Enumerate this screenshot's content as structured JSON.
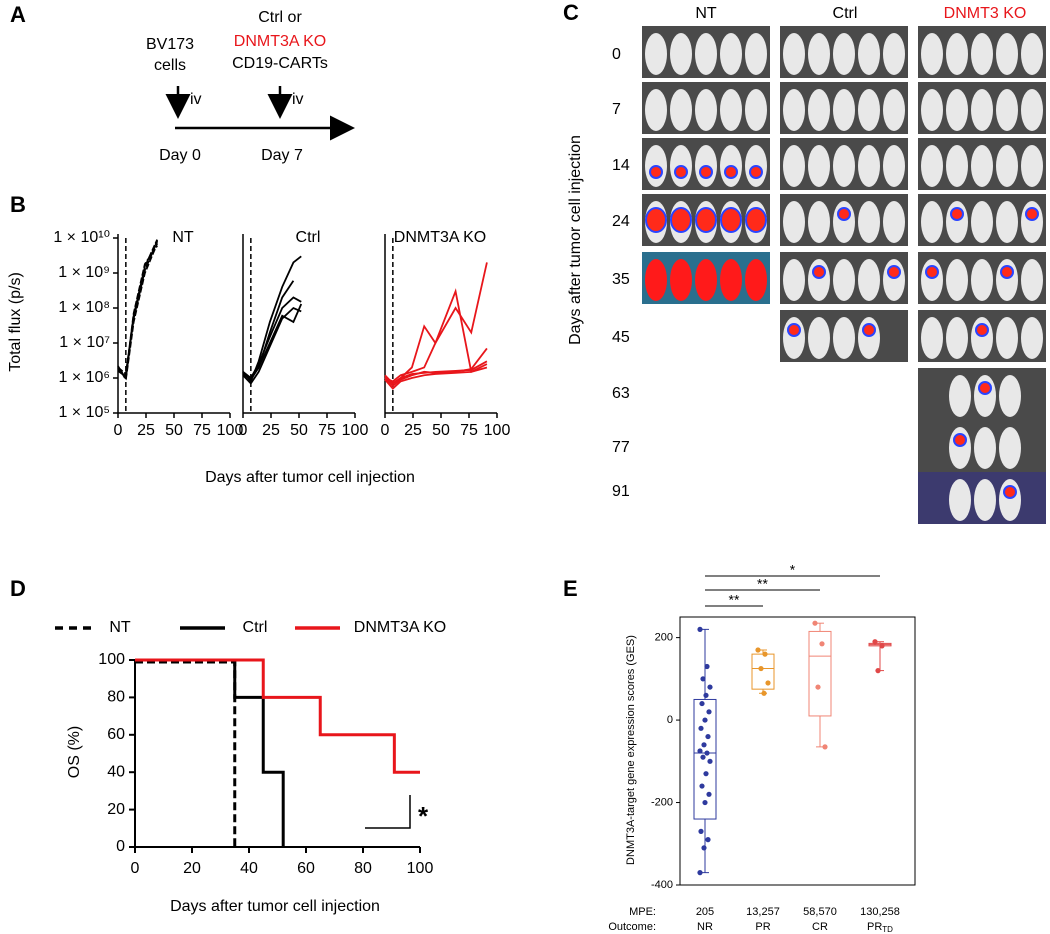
{
  "panel_labels": [
    "A",
    "B",
    "C",
    "D",
    "E"
  ],
  "timeline": {
    "tumor": [
      "BV173",
      "cells"
    ],
    "route_1": "iv",
    "treatment": [
      "Ctrl or",
      "DNMT3A KO",
      "CD19-CARTs"
    ],
    "route_2": "iv",
    "day_1": "Day 0",
    "day_2": "Day 7"
  },
  "panel_b": {
    "y_label": "Total flux (p/s)",
    "x_label": "Days after tumor cell injection"
  },
  "imaging": {
    "columns": [
      "NT",
      "Ctrl",
      "DNMT3 KO"
    ],
    "days": [
      "0",
      "7",
      "14",
      "24",
      "35",
      "45",
      "63",
      "77",
      "91"
    ],
    "y_label": "Days after tumor cell injection"
  },
  "chart_data": [
    {
      "type": "line",
      "title": "NT",
      "log_y": true,
      "vline": 7,
      "x": [
        0,
        7,
        14,
        24,
        35
      ],
      "xlim": [
        0,
        100
      ],
      "xticks": [
        0,
        25,
        50,
        75,
        100
      ],
      "ylim": [
        100000,
        10000000000
      ],
      "yticks": [
        {
          "value": 100000,
          "label": "1 × 10⁵"
        },
        {
          "value": 1000000,
          "label": "1 × 10⁶"
        },
        {
          "value": 10000000,
          "label": "1 × 10⁷"
        },
        {
          "value": 100000000,
          "label": "1 × 10⁸"
        },
        {
          "value": 1000000000,
          "label": "1 × 10⁹"
        },
        {
          "value": 10000000000,
          "label": "1 × 10¹⁰"
        }
      ],
      "series": [
        {
          "color": "#000000",
          "dash": true,
          "values": [
            2000000,
            1000000,
            60000000,
            1500000000,
            9000000000
          ]
        },
        {
          "color": "#000000",
          "dash": true,
          "values": [
            1800000,
            1200000,
            50000000,
            1200000000,
            8000000000
          ]
        },
        {
          "color": "#000000",
          "dash": true,
          "values": [
            2200000,
            900000,
            40000000,
            1000000000,
            7000000000
          ]
        },
        {
          "color": "#000000",
          "dash": true,
          "values": [
            1600000,
            1100000,
            70000000,
            1800000000,
            6000000000
          ]
        },
        {
          "color": "#000000",
          "dash": true,
          "values": [
            2000000,
            1300000,
            55000000,
            1300000000,
            8500000000
          ]
        }
      ]
    },
    {
      "type": "line",
      "title": "Ctrl",
      "log_y": true,
      "vline": 7,
      "x": [
        0,
        7,
        14,
        24,
        35,
        45,
        52
      ],
      "xlim": [
        0,
        100
      ],
      "xticks": [
        0,
        25,
        50,
        75,
        100
      ],
      "ylim": [
        100000,
        10000000000
      ],
      "series": [
        {
          "color": "#000000",
          "values": [
            1500000,
            800000,
            3000000,
            40000000,
            400000000,
            2000000000,
            3000000000
          ]
        },
        {
          "color": "#000000",
          "values": [
            1300000,
            900000,
            2000000,
            20000000,
            200000000,
            600000000,
            null
          ]
        },
        {
          "color": "#000000",
          "values": [
            1500000,
            1000000,
            2500000,
            15000000,
            100000000,
            200000000,
            150000000
          ]
        },
        {
          "color": "#000000",
          "values": [
            1200000,
            700000,
            1500000,
            8000000,
            50000000,
            100000000,
            80000000
          ]
        },
        {
          "color": "#000000",
          "values": [
            1400000,
            1000000,
            2000000,
            10000000,
            60000000,
            40000000,
            130000000
          ]
        }
      ]
    },
    {
      "type": "line",
      "title": "DNMT3A  KO",
      "log_y": true,
      "vline": 7,
      "x": [
        0,
        7,
        14,
        24,
        35,
        45,
        63,
        77,
        91
      ],
      "xlim": [
        0,
        100
      ],
      "xticks": [
        0,
        25,
        50,
        75,
        100
      ],
      "ylim": [
        100000,
        10000000000
      ],
      "series": [
        {
          "color": "#e8161b",
          "values": [
            1200000,
            700000,
            1000000,
            2000000,
            30000000,
            10000000,
            100000000,
            20000000,
            2000000000
          ]
        },
        {
          "color": "#e8161b",
          "values": [
            1000000,
            800000,
            1200000,
            1500000,
            2000000,
            10000000,
            300000000,
            1500000,
            2000000
          ]
        },
        {
          "color": "#e8161b",
          "values": [
            1000000,
            600000,
            900000,
            1200000,
            1500000,
            1400000,
            1500000,
            1800000,
            7000000
          ]
        },
        {
          "color": "#e8161b",
          "values": [
            900000,
            500000,
            800000,
            1000000,
            1200000,
            1300000,
            1400000,
            1500000,
            2500000
          ]
        },
        {
          "color": "#e8161b",
          "values": [
            1100000,
            700000,
            1000000,
            1300000,
            1400000,
            1500000,
            1600000,
            1700000,
            3000000
          ]
        }
      ]
    },
    {
      "type": "step",
      "x_label": "Days after tumor cell injection",
      "y_label": "OS (%)",
      "annotation": "*",
      "xlim": [
        0,
        100
      ],
      "xticks": [
        0,
        20,
        40,
        60,
        80,
        100
      ],
      "ylim": [
        0,
        100
      ],
      "yticks": [
        0,
        20,
        40,
        60,
        80,
        100
      ],
      "series": [
        {
          "name": "NT",
          "color": "#000000",
          "dash": true,
          "x": [
            0,
            35,
            35
          ],
          "values": [
            100,
            100,
            0
          ]
        },
        {
          "name": "Ctrl",
          "color": "#000000",
          "x": [
            0,
            35,
            35,
            45,
            45,
            52,
            52
          ],
          "values": [
            100,
            100,
            80,
            80,
            40,
            40,
            0
          ]
        },
        {
          "name": "DNMT3A KO",
          "color": "#e8161b",
          "x": [
            0,
            45,
            45,
            65,
            65,
            91,
            91,
            100
          ],
          "values": [
            100,
            100,
            80,
            80,
            60,
            60,
            40,
            40
          ]
        }
      ]
    },
    {
      "type": "box",
      "y_label": "DNMT3A-target gene expression scores (GES)",
      "row_labels": [
        "MPE:",
        "Outcome:"
      ],
      "categories": [
        "205",
        "13,257",
        "58,570",
        "130,258"
      ],
      "outcomes": [
        "NR",
        "PR",
        "CR",
        {
          "text": "PR",
          "sub": "TD"
        }
      ],
      "ylim": [
        -400,
        250
      ],
      "yticks": [
        -400,
        -200,
        0,
        200
      ],
      "boxes": [
        {
          "color": "#2e3a9e",
          "min": -370,
          "q1": -240,
          "median": -80,
          "q3": 50,
          "max": 220,
          "points": [
            220,
            130,
            100,
            80,
            60,
            40,
            20,
            0,
            -20,
            -40,
            -60,
            -75,
            -80,
            -90,
            -100,
            -130,
            -160,
            -180,
            -200,
            -270,
            -290,
            -310,
            -370
          ]
        },
        {
          "color": "#e8962b",
          "min": 65,
          "q1": 75,
          "median": 125,
          "q3": 160,
          "max": 170,
          "points": [
            170,
            160,
            125,
            90,
            65
          ]
        },
        {
          "color": "#f08575",
          "min": -65,
          "q1": 10,
          "median": 155,
          "q3": 215,
          "max": 235,
          "points": [
            235,
            185,
            80,
            -65
          ]
        },
        {
          "color": "#e04848",
          "min": 120,
          "q1": 180,
          "median": 183,
          "q3": 186,
          "max": 190,
          "points": [
            190,
            180,
            120
          ]
        }
      ],
      "significance": [
        {
          "from": 0,
          "to": 1,
          "label": "**"
        },
        {
          "from": 0,
          "to": 2,
          "label": "**"
        },
        {
          "from": 0,
          "to": 3,
          "label": "*"
        }
      ]
    }
  ]
}
